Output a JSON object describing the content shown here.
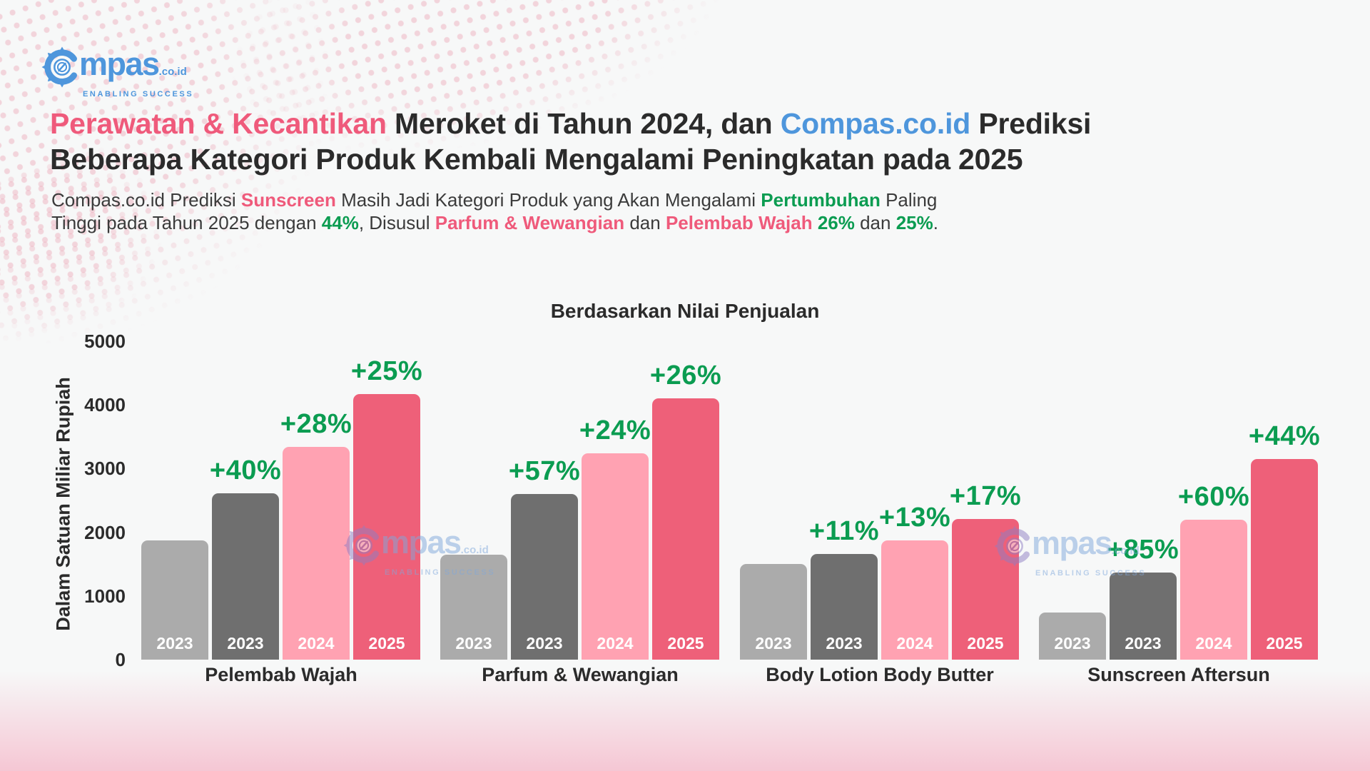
{
  "brand": {
    "wordmark_rest": "mpas",
    "suffix": ".co.id",
    "tagline": "ENABLING SUCCESS"
  },
  "header": {
    "title_line1": [
      {
        "t": "Perawatan & Kecantikan",
        "c": "pink"
      },
      {
        "t": " Meroket di Tahun 2024, dan ",
        "c": "dark"
      },
      {
        "t": "Compas.co.id",
        "c": "blue"
      },
      {
        "t": " Prediksi",
        "c": "dark"
      }
    ],
    "title_line2": [
      {
        "t": "Beberapa Kategori Produk Kembali Mengalami Peningkatan pada 2025",
        "c": "dark"
      }
    ],
    "subtitle_line1": [
      {
        "t": "Compas.co.id Prediksi ",
        "c": "dark"
      },
      {
        "t": "Sunscreen",
        "c": "pink-bold"
      },
      {
        "t": " Masih Jadi Kategori Produk yang Akan Mengalami ",
        "c": "dark"
      },
      {
        "t": "Pertumbuhan",
        "c": "green-bold"
      },
      {
        "t": " Paling",
        "c": "dark"
      }
    ],
    "subtitle_line2": [
      {
        "t": "Tinggi pada Tahun 2025 dengan ",
        "c": "dark"
      },
      {
        "t": "44%",
        "c": "green-bold"
      },
      {
        "t": ", Disusul ",
        "c": "dark"
      },
      {
        "t": "Parfum & Wewangian",
        "c": "pink-bold"
      },
      {
        "t": " dan ",
        "c": "dark"
      },
      {
        "t": "Pelembab Wajah",
        "c": "pink-bold"
      },
      {
        "t": " ",
        "c": "dark"
      },
      {
        "t": "26%",
        "c": "green-bold"
      },
      {
        "t": " dan ",
        "c": "dark"
      },
      {
        "t": "25%",
        "c": "green-bold"
      },
      {
        "t": ".",
        "c": "dark"
      }
    ]
  },
  "chart_data": {
    "type": "bar",
    "title": "Berdasarkan Nilai Penjualan",
    "xlabel": "",
    "ylabel": "Dalam Satuan Miliar Rupiah",
    "ylim": [
      0,
      5000
    ],
    "yticks": [
      0,
      1000,
      2000,
      3000,
      4000,
      5000
    ],
    "grid": false,
    "legend": "none",
    "bar_colors": [
      "#ABABAB",
      "#6F6F6F",
      "#FFA2B2",
      "#EE6079"
    ],
    "growth_label_color": "#0B9C51",
    "groups": [
      {
        "category": "Pelembab Wajah",
        "bars": [
          {
            "year": "2023",
            "value": 1870,
            "growth": null
          },
          {
            "year": "2023",
            "value": 2610,
            "growth": "+40%"
          },
          {
            "year": "2024",
            "value": 3340,
            "growth": "+28%"
          },
          {
            "year": "2025",
            "value": 4170,
            "growth": "+25%"
          }
        ]
      },
      {
        "category": "Parfum & Wewangian",
        "bars": [
          {
            "year": "2023",
            "value": 1650,
            "growth": null
          },
          {
            "year": "2023",
            "value": 2600,
            "growth": "+57%"
          },
          {
            "year": "2024",
            "value": 3240,
            "growth": "+24%"
          },
          {
            "year": "2025",
            "value": 4100,
            "growth": "+26%"
          }
        ]
      },
      {
        "category": "Body Lotion Body Butter",
        "bars": [
          {
            "year": "2023",
            "value": 1500,
            "growth": null
          },
          {
            "year": "2023",
            "value": 1660,
            "growth": "+11%"
          },
          {
            "year": "2024",
            "value": 1870,
            "growth": "+13%"
          },
          {
            "year": "2025",
            "value": 2210,
            "growth": "+17%"
          }
        ]
      },
      {
        "category": "Sunscreen Aftersun",
        "bars": [
          {
            "year": "2023",
            "value": 740,
            "growth": null
          },
          {
            "year": "2023",
            "value": 1370,
            "growth": "+85%"
          },
          {
            "year": "2024",
            "value": 2200,
            "growth": "+60%"
          },
          {
            "year": "2025",
            "value": 3150,
            "growth": "+44%"
          }
        ]
      }
    ]
  },
  "colors": {
    "pink": "#EF5A7B",
    "blue": "#4E96DC",
    "green": "#0B9C51",
    "dark": "#2B2B2B"
  }
}
